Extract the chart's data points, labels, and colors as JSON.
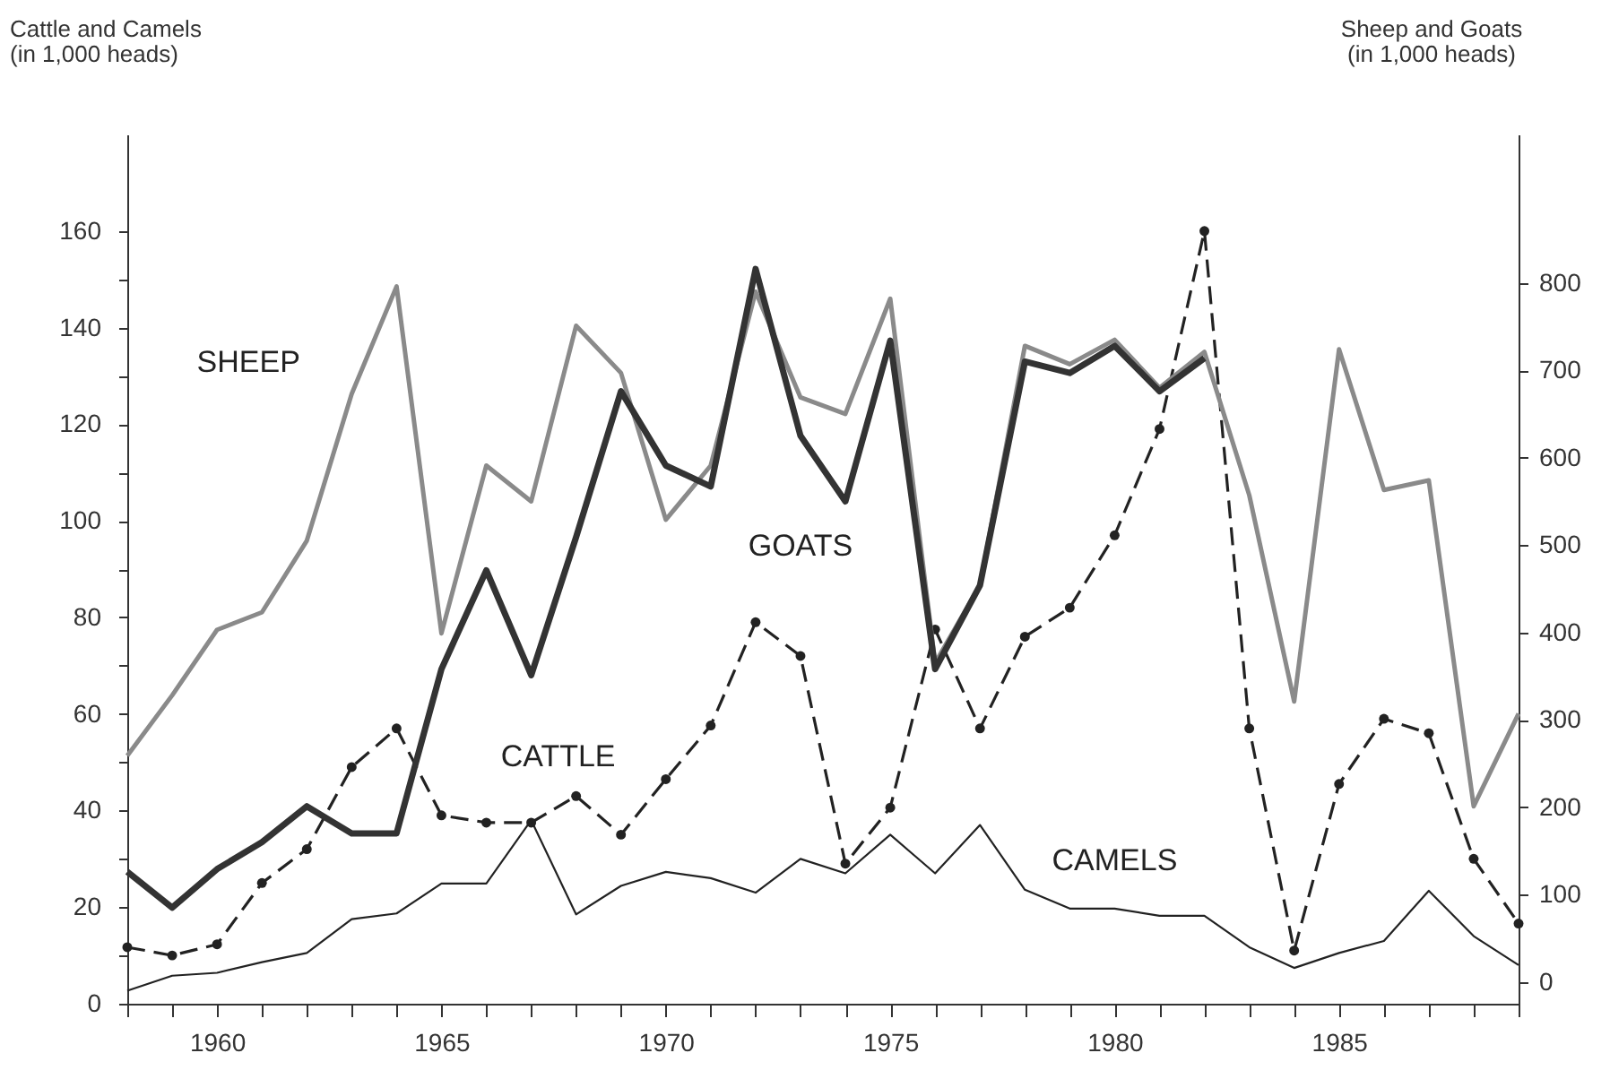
{
  "chart_data": {
    "type": "line",
    "xlabel": null,
    "ylabel": "Cattle and Camels\n(in 1,000 heads)",
    "y2label": "Sheep and Goats\n(in 1,000 heads)",
    "x": [
      1958,
      1959,
      1960,
      1961,
      1962,
      1963,
      1964,
      1965,
      1966,
      1967,
      1968,
      1969,
      1970,
      1971,
      1972,
      1973,
      1974,
      1975,
      1976,
      1977,
      1978,
      1979,
      1980,
      1981,
      1982,
      1983,
      1984,
      1985,
      1986,
      1987,
      1988,
      1989
    ],
    "xlim": [
      1958,
      1989
    ],
    "xticks": [
      {
        "value": 1958,
        "label": null
      },
      {
        "value": 1959,
        "label": null
      },
      1960,
      {
        "value": 1961,
        "label": null
      },
      {
        "value": 1962,
        "label": null
      },
      {
        "value": 1963,
        "label": null
      },
      {
        "value": 1964,
        "label": null
      },
      1965,
      {
        "value": 1966,
        "label": null
      },
      {
        "value": 1967,
        "label": null
      },
      {
        "value": 1968,
        "label": null
      },
      {
        "value": 1969,
        "label": null
      },
      1970,
      {
        "value": 1971,
        "label": null
      },
      {
        "value": 1972,
        "label": null
      },
      {
        "value": 1973,
        "label": null
      },
      {
        "value": 1974,
        "label": null
      },
      1975,
      {
        "value": 1976,
        "label": null
      },
      {
        "value": 1977,
        "label": null
      },
      {
        "value": 1978,
        "label": null
      },
      {
        "value": 1979,
        "label": null
      },
      1980,
      {
        "value": 1981,
        "label": null
      },
      {
        "value": 1982,
        "label": null
      },
      {
        "value": 1983,
        "label": null
      },
      {
        "value": 1984,
        "label": null
      },
      1985,
      {
        "value": 1986,
        "label": null
      },
      {
        "value": 1987,
        "label": null
      },
      {
        "value": 1988,
        "label": null
      },
      {
        "value": 1989,
        "label": null
      }
    ],
    "ylim": [
      0,
      180
    ],
    "yticks": [
      0,
      {
        "value": 10,
        "label": null
      },
      20,
      {
        "value": 30,
        "label": null
      },
      40,
      {
        "value": 50,
        "label": null
      },
      60,
      {
        "value": 70,
        "label": null
      },
      80,
      {
        "value": 90,
        "label": null
      },
      100,
      {
        "value": 110,
        "label": null
      },
      120,
      {
        "value": 130,
        "label": null
      },
      140,
      {
        "value": 150,
        "label": null
      },
      160
    ],
    "y2lim": [
      -25,
      970
    ],
    "y2ticks": [
      0,
      100,
      200,
      300,
      400,
      500,
      600,
      700,
      800
    ],
    "grid": false,
    "legend": false,
    "series": [
      {
        "name": "SHEEP",
        "axis": "y2",
        "color": "#8a8a8a",
        "line_style": "solid",
        "marker": "none",
        "values": [
          259,
          328,
          403,
          423,
          505,
          673,
          796,
          399,
          591,
          550,
          751,
          697,
          529,
          591,
          790,
          669,
          650,
          782,
          365,
          454,
          728,
          707,
          735,
          680,
          721,
          557,
          321,
          724,
          563,
          574,
          201,
          307
        ]
      },
      {
        "name": "GOATS",
        "axis": "y2",
        "color": "#333333",
        "line_style": "solid",
        "marker": "none",
        "values": [
          126,
          85,
          129,
          160,
          201,
          170,
          170,
          358,
          471,
          351,
          509,
          676,
          591,
          567,
          816,
          625,
          550,
          734,
          358,
          454,
          710,
          697,
          728,
          676,
          714,
          null,
          null,
          null,
          null,
          null,
          null,
          null
        ]
      },
      {
        "name": "CATTLE",
        "axis": "y",
        "color": "#222222",
        "line_style": "dashed",
        "marker": "circle",
        "values": [
          11.7,
          10,
          12.3,
          25,
          32,
          49,
          57,
          39,
          37.5,
          37.5,
          43,
          35,
          46.5,
          57.6,
          79,
          72,
          29,
          40.6,
          77.5,
          57,
          76,
          82,
          97,
          119,
          160,
          57,
          11,
          45.5,
          59,
          56,
          30,
          16.6
        ]
      },
      {
        "name": "CAMELS",
        "axis": "y",
        "color": "#222222",
        "line_style": "solid",
        "marker": "none",
        "values": [
          2.7,
          5.8,
          6.4,
          8.6,
          10.5,
          17.5,
          18.7,
          24.9,
          24.9,
          38,
          18.5,
          24.4,
          27.3,
          26,
          23,
          30,
          27,
          35,
          27,
          37,
          23.6,
          19.7,
          19.7,
          18.2,
          18.2,
          11.7,
          7.4,
          10.5,
          13,
          23.4,
          14,
          8
        ]
      }
    ]
  }
}
